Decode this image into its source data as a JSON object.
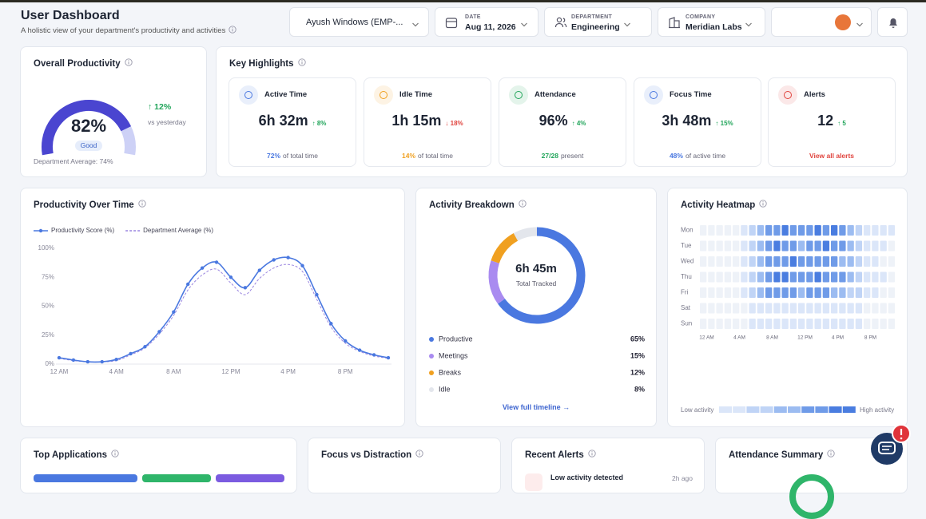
{
  "header": {
    "title": "User Dashboard",
    "subtitle": "A holistic view of your department's productivity and activities"
  },
  "filters": {
    "employee": "Ayush Windows (EMP-...",
    "date_label": "DATE",
    "date": "Aug 11, 2026",
    "department_label": "DEPARTMENT",
    "department": "Engineering",
    "company_label": "COMPANY",
    "company": "Meridian Labs"
  },
  "overall_productivity": {
    "title": "Overall Productivity",
    "score": 82,
    "score_label": "82%",
    "rating": "Good",
    "change": "↑ 12%",
    "change_caption": "vs yesterday",
    "department_average": "Department Average: 74%"
  },
  "key_highlights": {
    "title": "Key Highlights",
    "items": [
      {
        "label": "Active Time",
        "value": "6h 32m",
        "change": "↑ 8%",
        "change_color": "#22a55b",
        "footer_value": "72%",
        "footer_text": "of total time",
        "accent": "#4a78e0"
      },
      {
        "label": "Idle Time",
        "value": "1h 15m",
        "change": "↓ 18%",
        "change_color": "#e0443e",
        "footer_value": "14%",
        "footer_text": "of total time",
        "accent": "#f0a020"
      },
      {
        "label": "Attendance",
        "value": "96%",
        "change": "↑ 4%",
        "change_color": "#22a55b",
        "footer_value": "27/28",
        "footer_text": "present",
        "accent": "#22a55b"
      },
      {
        "label": "Focus Time",
        "value": "3h 48m",
        "change": "↑ 15%",
        "change_color": "#22a55b",
        "footer_value": "48%",
        "footer_text": "of active time",
        "accent": "#4a78e0"
      },
      {
        "label": "Alerts",
        "value": "12",
        "change": "↑ 5",
        "change_color": "#22a55b",
        "footer_value": "View all alerts",
        "accent": "#e0443e"
      }
    ]
  },
  "productivity_over_time": {
    "title": "Productivity Over Time",
    "chart_data": {
      "type": "line",
      "categories": [
        "12 AM",
        null,
        null,
        null,
        "4 AM",
        null,
        null,
        null,
        "8 AM",
        null,
        null,
        null,
        "12 PM",
        null,
        null,
        null,
        "4 PM",
        null,
        null,
        null,
        "8 PM",
        null,
        null,
        null
      ],
      "series": [
        {
          "name": "Productivity Score (%)",
          "color": "#4a78e0",
          "values": [
            5.5,
            3.5,
            2,
            2,
            4,
            9,
            15,
            28,
            45,
            69,
            83,
            88,
            75,
            66,
            81,
            90,
            92,
            85,
            60,
            35,
            20,
            12,
            8,
            5.5
          ]
        },
        {
          "name": "Department Average (%)",
          "color": "#9b86e0",
          "dashed": true,
          "values": [
            5,
            3,
            2,
            2,
            3,
            8,
            14,
            26,
            42,
            64,
            77,
            82,
            70,
            60,
            74,
            83,
            86,
            80,
            56,
            32,
            18,
            11,
            7,
            5
          ]
        }
      ],
      "ylim": [
        0,
        100
      ],
      "yticks": [
        {
          "value": 0,
          "label": "0%"
        },
        {
          "value": 25,
          "label": "25%"
        },
        {
          "value": 50,
          "label": "50%"
        },
        {
          "value": 75,
          "label": "75%"
        },
        {
          "value": 100,
          "label": "100%"
        }
      ]
    }
  },
  "activity_breakdown": {
    "title": "Activity Breakdown",
    "center_value": "6h 45m",
    "center_caption": "Total Tracked",
    "link": "View full timeline →",
    "chart_data": {
      "type": "donut",
      "categories": [
        "Productive",
        "Meetings",
        "Breaks",
        "Idle"
      ],
      "values": [
        65,
        15,
        12,
        8
      ],
      "value_labels": [
        "65%",
        "15%",
        "12%",
        "8%"
      ],
      "colors": [
        "#4a78e0",
        "#a98bf0",
        "#f0a020",
        "#e3e6ec"
      ]
    }
  },
  "activity_heatmap": {
    "title": "Activity Heatmap",
    "chart_data": {
      "type": "heatmap",
      "rows": [
        "Mon",
        "Tue",
        "Wed",
        "Thu",
        "Fri",
        "Sat",
        "Sun"
      ],
      "columns": [
        "12 AM",
        null,
        null,
        null,
        "4 AM",
        null,
        null,
        null,
        "8 AM",
        null,
        null,
        null,
        "12 PM",
        null,
        null,
        null,
        "4 PM",
        null,
        null,
        null,
        "8 PM",
        null,
        null,
        null
      ],
      "values": [
        [
          0,
          0,
          0,
          0,
          0,
          1,
          2,
          3,
          4,
          4,
          5,
          4,
          4,
          4,
          5,
          4,
          5,
          4,
          3,
          2,
          1,
          1,
          1,
          1
        ],
        [
          0,
          0,
          0,
          0,
          0,
          1,
          2,
          3,
          4,
          5,
          4,
          4,
          3,
          4,
          4,
          5,
          4,
          4,
          3,
          2,
          1,
          1,
          1,
          0
        ],
        [
          0,
          0,
          0,
          0,
          0,
          1,
          2,
          3,
          4,
          4,
          4,
          5,
          4,
          4,
          4,
          4,
          4,
          3,
          3,
          2,
          1,
          1,
          0,
          0
        ],
        [
          0,
          0,
          0,
          0,
          0,
          1,
          2,
          3,
          4,
          5,
          5,
          4,
          4,
          4,
          5,
          4,
          4,
          4,
          3,
          2,
          1,
          1,
          1,
          0
        ],
        [
          0,
          0,
          0,
          0,
          0,
          1,
          2,
          3,
          4,
          4,
          4,
          4,
          3,
          4,
          4,
          4,
          3,
          3,
          2,
          2,
          1,
          1,
          0,
          0
        ],
        [
          0,
          0,
          0,
          0,
          0,
          0,
          1,
          1,
          1,
          1,
          1,
          1,
          1,
          1,
          1,
          1,
          1,
          1,
          1,
          1,
          0,
          0,
          0,
          0
        ],
        [
          0,
          0,
          0,
          0,
          0,
          0,
          1,
          1,
          1,
          1,
          1,
          1,
          1,
          1,
          1,
          1,
          1,
          1,
          1,
          1,
          0,
          0,
          0,
          0
        ]
      ],
      "palette": [
        "#eef2f8",
        "#dbe6f9",
        "#c0d4f6",
        "#9cbcf1",
        "#6f9be8",
        "#4a7de0"
      ],
      "legend_low": "Low activity",
      "legend_high": "High activity"
    }
  },
  "bottom_cards": {
    "top_applications": "Top Applications",
    "focus_vs_distraction": "Focus vs Distraction",
    "recent_alerts": {
      "title": "Recent Alerts",
      "items": [
        {
          "text": "Low activity detected",
          "time": "2h ago"
        }
      ]
    },
    "attendance_summary": "Attendance Summary"
  }
}
